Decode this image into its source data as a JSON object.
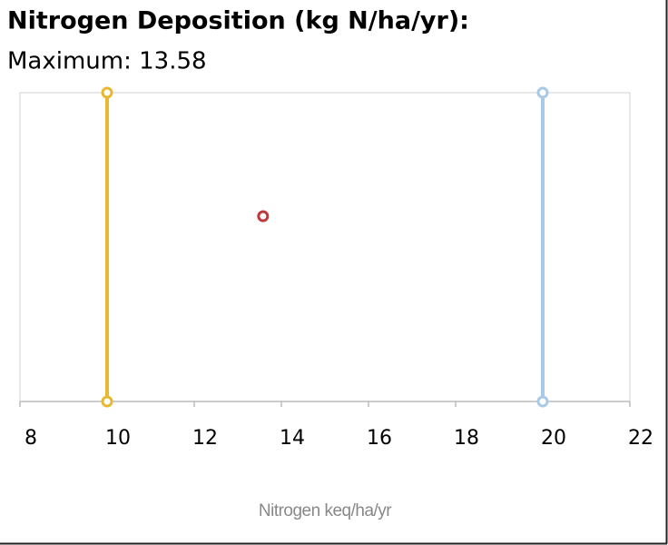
{
  "chart_data": {
    "type": "scatter",
    "title": "Nitrogen Deposition (kg N/ha/yr):",
    "subtitle": "Maximum: 13.58",
    "x_label": "Nitrogen keq/ha/yr",
    "xlim": [
      8,
      22
    ],
    "xticks": [
      8,
      10,
      12,
      14,
      16,
      18,
      20,
      22
    ],
    "ylim": [
      0,
      1
    ],
    "series": [
      {
        "color": "#e8b830",
        "x": [
          10,
          10
        ],
        "y": [
          0,
          1
        ]
      },
      {
        "color": "#a9c9e8",
        "x": [
          20,
          20
        ],
        "y": [
          0,
          1
        ]
      },
      {
        "color": "#c0393b",
        "x": [
          13.58
        ],
        "y": [
          0.6
        ]
      }
    ]
  }
}
